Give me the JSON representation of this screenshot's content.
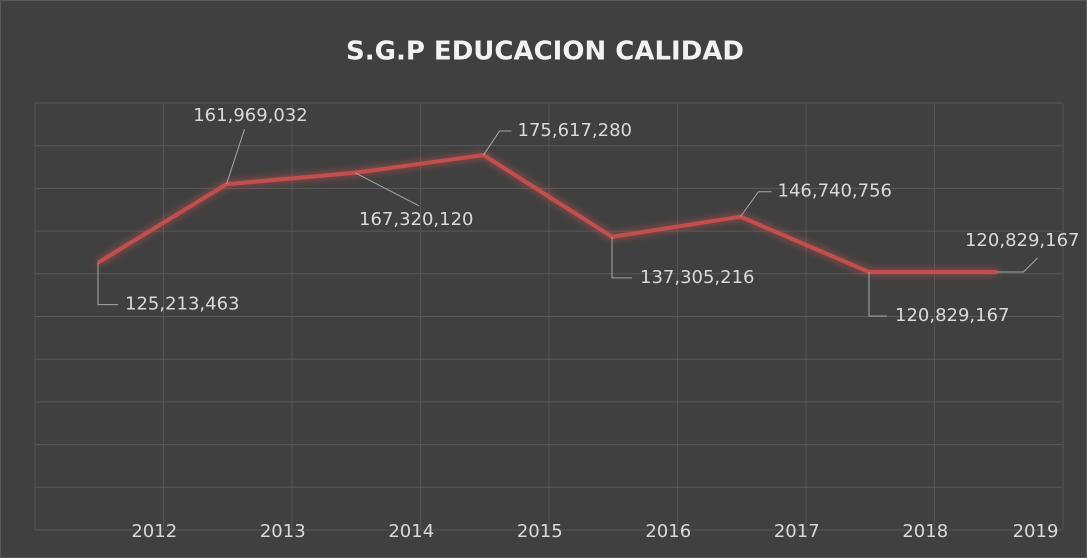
{
  "chart_data": {
    "type": "line",
    "title": "S.G.P EDUCACION CALIDAD",
    "categories": [
      "2012",
      "2013",
      "2014",
      "2015",
      "2016",
      "2017",
      "2018",
      "2019"
    ],
    "series": [
      {
        "name": "S.G.P EDUCACION CALIDAD",
        "color": "#c0504d",
        "values": [
          125213463,
          161969032,
          167320120,
          175617280,
          137305216,
          146740756,
          120829167,
          120829167
        ],
        "value_labels": [
          "125,213,463",
          "161,969,032",
          "167,320,120",
          "175,617,280",
          "137,305,216",
          "146,740,756",
          "120,829,167",
          "120,829,167"
        ]
      }
    ],
    "ylim": [
      0,
      200000000
    ],
    "yticks": [
      0,
      20000000,
      40000000,
      60000000,
      80000000,
      100000000,
      120000000,
      140000000,
      160000000,
      180000000,
      200000000
    ],
    "grid": true
  }
}
